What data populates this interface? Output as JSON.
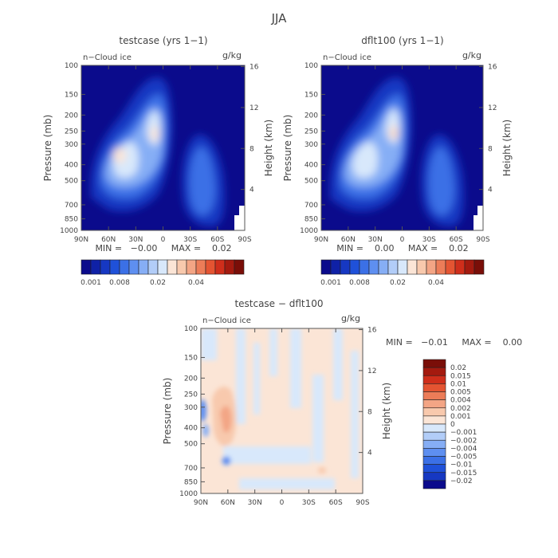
{
  "page_title": "JJA",
  "colors": {
    "text": "#444444",
    "axis": "#555555",
    "blue_scale": [
      "#0b0b8c",
      "#0f21a6",
      "#1638c2",
      "#1f51d9",
      "#3b70e6",
      "#5e8ff0",
      "#86aef5",
      "#b2cdf8",
      "#d8e8fb",
      "#fbe5d6",
      "#f8c9ad",
      "#f3a585",
      "#ec7c58",
      "#e45432",
      "#cf2e1b",
      "#a41a0f",
      "#7a0e08"
    ]
  },
  "chart_data": [
    {
      "id": "testcase",
      "type": "heatmap",
      "title": "testcase (yrs 1−1)",
      "inner_label": "n−Cloud ice",
      "unit_label": "g/kg",
      "ylabel": "Pressure (mb)",
      "y2label": "Height (km)",
      "x_ticks": [
        "90N",
        "60N",
        "30N",
        "0",
        "30S",
        "60S",
        "90S"
      ],
      "y_ticks": [
        "100",
        "150",
        "200",
        "250",
        "300",
        "400",
        "500",
        "700",
        "850",
        "1000"
      ],
      "y2_ticks": [
        "16",
        "12",
        "8",
        "4"
      ],
      "stats": "MIN =   −0.00     MAX =    0.02",
      "colorbar": {
        "orientation": "horizontal",
        "tick_labels": [
          "0.001",
          "0.008",
          "0.02",
          "0.04"
        ]
      }
    },
    {
      "id": "dflt100",
      "type": "heatmap",
      "title": "dflt100 (yrs 1−1)",
      "inner_label": "n−Cloud ice",
      "unit_label": "g/kg",
      "ylabel": "Pressure (mb)",
      "y2label": "Height (km)",
      "x_ticks": [
        "90N",
        "60N",
        "30N",
        "0",
        "30S",
        "60S",
        "90S"
      ],
      "y_ticks": [
        "100",
        "150",
        "200",
        "250",
        "300",
        "400",
        "500",
        "700",
        "850",
        "1000"
      ],
      "y2_ticks": [
        "16",
        "12",
        "8",
        "4"
      ],
      "stats": "MIN =    0.00     MAX =    0.02",
      "colorbar": {
        "orientation": "horizontal",
        "tick_labels": [
          "0.001",
          "0.008",
          "0.02",
          "0.04"
        ]
      }
    },
    {
      "id": "diff",
      "type": "heatmap",
      "title": "testcase − dflt100",
      "inner_label": "n−Cloud ice",
      "unit_label": "g/kg",
      "ylabel": "Pressure (mb)",
      "y2label": "Height (km)",
      "x_ticks": [
        "90N",
        "60N",
        "30N",
        "0",
        "30S",
        "60S",
        "90S"
      ],
      "y_ticks": [
        "100",
        "150",
        "200",
        "250",
        "300",
        "400",
        "500",
        "700",
        "850",
        "1000"
      ],
      "y2_ticks": [
        "16",
        "12",
        "8",
        "4"
      ],
      "stats": "MIN =   −0.01     MAX =    0.00",
      "colorbar": {
        "orientation": "vertical",
        "tick_labels": [
          "0.02",
          "0.015",
          "0.01",
          "0.005",
          "0.004",
          "0.002",
          "0.001",
          "0",
          "−0.001",
          "−0.002",
          "−0.004",
          "−0.005",
          "−0.01",
          "−0.015",
          "−0.02"
        ]
      }
    }
  ]
}
